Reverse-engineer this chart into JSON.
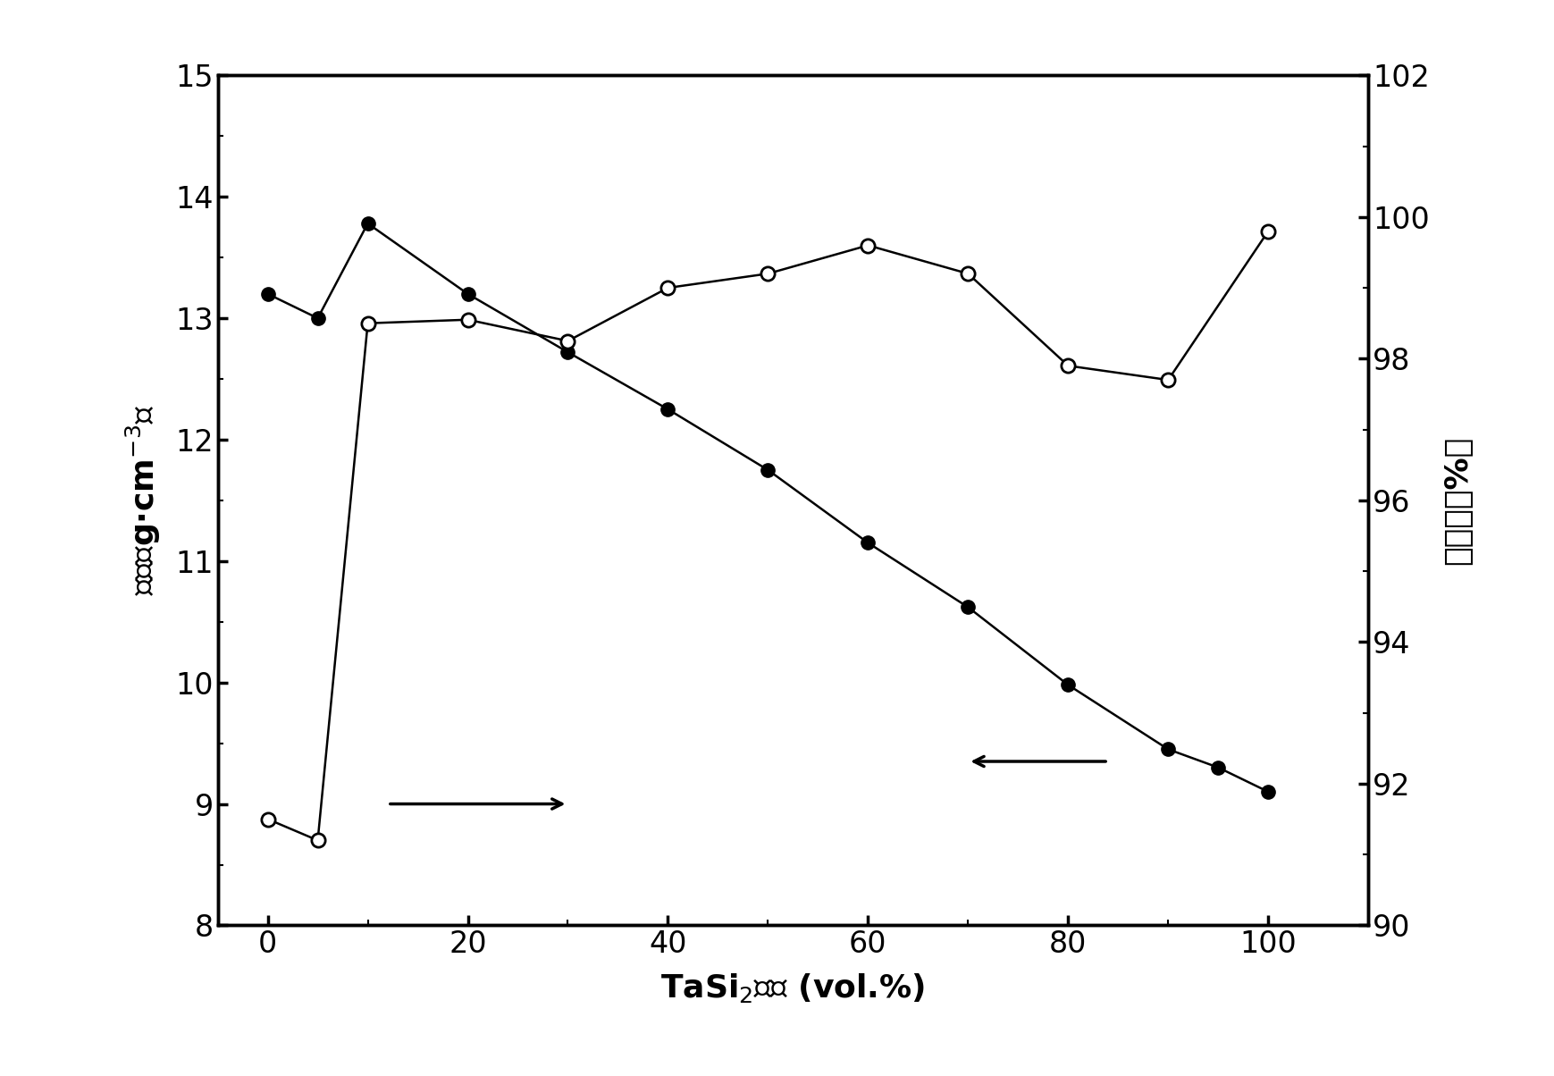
{
  "density_x": [
    0,
    5,
    10,
    20,
    30,
    40,
    50,
    60,
    70,
    80,
    90,
    95,
    100
  ],
  "density_y": [
    13.2,
    13.0,
    13.78,
    13.2,
    12.72,
    12.25,
    11.75,
    11.15,
    10.62,
    9.98,
    9.45,
    9.3,
    9.1
  ],
  "rel_density_x": [
    0,
    5,
    10,
    20,
    30,
    40,
    50,
    60,
    70,
    80,
    90,
    100
  ],
  "rel_density_y": [
    91.5,
    91.2,
    98.5,
    98.55,
    98.25,
    99.0,
    99.2,
    99.6,
    99.2,
    97.9,
    97.7,
    99.8
  ],
  "xlabel": "TaSi$_2$含量 (vol.%)",
  "ylabel_left": "密度（g·cm$^{-3}$）",
  "ylabel_right": "致密度（%）",
  "xlim": [
    -5,
    110
  ],
  "ylim_left": [
    8,
    15
  ],
  "ylim_right": [
    90,
    102
  ],
  "xticks": [
    0,
    20,
    40,
    60,
    80,
    100
  ],
  "yticks_left": [
    8,
    9,
    10,
    11,
    12,
    13,
    14,
    15
  ],
  "yticks_right": [
    90,
    92,
    94,
    96,
    98,
    100,
    102
  ],
  "bg_color": "#ffffff",
  "line_color": "#000000",
  "marker_size": 11,
  "line_width": 1.8,
  "font_size_label": 26,
  "font_size_tick": 24,
  "font_size_xlabel": 26
}
